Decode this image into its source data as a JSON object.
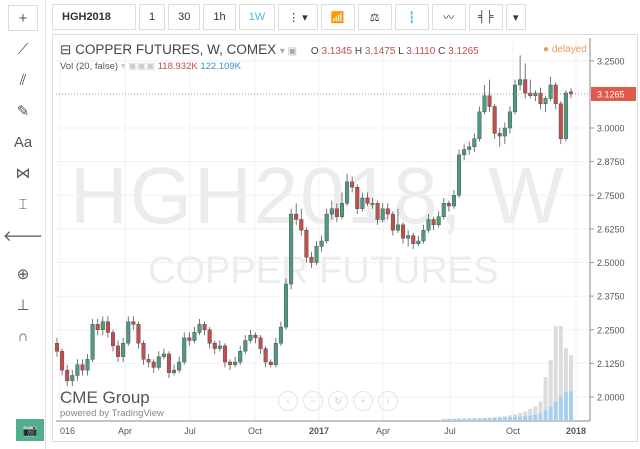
{
  "toolbar": {
    "symbol": "HGH2018",
    "intervals": [
      "1",
      "30",
      "1h",
      "1W"
    ],
    "active_interval": "1W"
  },
  "left_tools": [
    {
      "icon": "crosshair-icon",
      "glyph": "+"
    },
    {
      "icon": "trend-line-icon",
      "glyph": "⟋"
    },
    {
      "icon": "fib-icon",
      "glyph": "⫽"
    },
    {
      "icon": "brush-icon",
      "glyph": "✎"
    },
    {
      "icon": "text-icon",
      "glyph": "Aa"
    },
    {
      "icon": "pattern-icon",
      "glyph": "⋈"
    },
    {
      "icon": "measure-icon",
      "glyph": "⌶"
    },
    {
      "icon": "arrow-left-icon",
      "glyph": "🡐"
    },
    {
      "icon": "zoom-icon",
      "glyph": "⊕"
    },
    {
      "icon": "ruler-icon",
      "glyph": "⊥"
    },
    {
      "icon": "magnet-icon",
      "glyph": "∩"
    }
  ],
  "legend": {
    "title": "COPPER FUTURES, W, COMEX",
    "o_label": "O",
    "o": "3.1345",
    "h_label": "H",
    "h": "3.1475",
    "l_label": "L",
    "l": "3.1110",
    "c_label": "C",
    "c": "3.1265",
    "vol_label": "Vol (20, false)",
    "vol1": "118.932K",
    "vol2": "122.109K",
    "status": "● delayed"
  },
  "watermark": {
    "symbol": "HGH2018, W",
    "name": "COPPER FUTURES"
  },
  "branding": {
    "name": "CME Group",
    "powered": "powered by TradingView"
  },
  "colors": {
    "up": "#4e9a7e",
    "down": "#c0504d",
    "volume": "#a9cfee",
    "volume2": "#dcdcdc",
    "last_price": "#e05a4a"
  },
  "chart_data": {
    "type": "candlestick",
    "last_price": "3.1265",
    "y_ticks": [
      "3.2500",
      "3.0000",
      "2.8750",
      "2.7500",
      "2.6250",
      "2.5000",
      "2.3750",
      "2.2500",
      "2.1250",
      "2.0000"
    ],
    "x_ticks": [
      "016",
      "Apr",
      "Jul",
      "Oct",
      "2017",
      "Apr",
      "Jul",
      "Oct",
      "2018"
    ],
    "ylim": [
      1.92,
      3.32
    ],
    "grid": true,
    "ohlc": [
      [
        2.2,
        2.22,
        2.15,
        2.17
      ],
      [
        2.17,
        2.18,
        2.08,
        2.1
      ],
      [
        2.1,
        2.12,
        2.04,
        2.06
      ],
      [
        2.06,
        2.1,
        2.04,
        2.08
      ],
      [
        2.08,
        2.14,
        2.06,
        2.12
      ],
      [
        2.12,
        2.14,
        2.08,
        2.1
      ],
      [
        2.1,
        2.16,
        2.08,
        2.14
      ],
      [
        2.14,
        2.29,
        2.13,
        2.27
      ],
      [
        2.27,
        2.29,
        2.23,
        2.25
      ],
      [
        2.25,
        2.3,
        2.23,
        2.28
      ],
      [
        2.28,
        2.3,
        2.22,
        2.24
      ],
      [
        2.24,
        2.25,
        2.17,
        2.19
      ],
      [
        2.19,
        2.21,
        2.13,
        2.15
      ],
      [
        2.15,
        2.22,
        2.13,
        2.2
      ],
      [
        2.2,
        2.3,
        2.19,
        2.28
      ],
      [
        2.28,
        2.3,
        2.25,
        2.27
      ],
      [
        2.27,
        2.28,
        2.18,
        2.2
      ],
      [
        2.2,
        2.21,
        2.12,
        2.14
      ],
      [
        2.14,
        2.16,
        2.11,
        2.13
      ],
      [
        2.13,
        2.14,
        2.09,
        2.11
      ],
      [
        2.11,
        2.17,
        2.1,
        2.15
      ],
      [
        2.15,
        2.18,
        2.14,
        2.16
      ],
      [
        2.16,
        2.17,
        2.07,
        2.09
      ],
      [
        2.09,
        2.12,
        2.08,
        2.1
      ],
      [
        2.1,
        2.15,
        2.09,
        2.13
      ],
      [
        2.13,
        2.24,
        2.12,
        2.22
      ],
      [
        2.22,
        2.24,
        2.19,
        2.21
      ],
      [
        2.21,
        2.26,
        2.2,
        2.24
      ],
      [
        2.24,
        2.29,
        2.23,
        2.27
      ],
      [
        2.27,
        2.28,
        2.23,
        2.25
      ],
      [
        2.25,
        2.26,
        2.18,
        2.2
      ],
      [
        2.2,
        2.21,
        2.16,
        2.18
      ],
      [
        2.18,
        2.21,
        2.17,
        2.19
      ],
      [
        2.19,
        2.2,
        2.11,
        2.13
      ],
      [
        2.13,
        2.14,
        2.1,
        2.12
      ],
      [
        2.12,
        2.15,
        2.11,
        2.13
      ],
      [
        2.13,
        2.19,
        2.12,
        2.17
      ],
      [
        2.17,
        2.23,
        2.16,
        2.21
      ],
      [
        2.21,
        2.25,
        2.2,
        2.23
      ],
      [
        2.23,
        2.24,
        2.2,
        2.22
      ],
      [
        2.22,
        2.23,
        2.16,
        2.18
      ],
      [
        2.18,
        2.19,
        2.11,
        2.13
      ],
      [
        2.13,
        2.14,
        2.11,
        2.12
      ],
      [
        2.12,
        2.22,
        2.11,
        2.2
      ],
      [
        2.2,
        2.28,
        2.19,
        2.26
      ],
      [
        2.26,
        2.44,
        2.25,
        2.42
      ],
      [
        2.42,
        2.7,
        2.4,
        2.68
      ],
      [
        2.68,
        2.72,
        2.64,
        2.66
      ],
      [
        2.66,
        2.7,
        2.6,
        2.62
      ],
      [
        2.62,
        2.63,
        2.5,
        2.52
      ],
      [
        2.52,
        2.54,
        2.48,
        2.5
      ],
      [
        2.5,
        2.58,
        2.49,
        2.56
      ],
      [
        2.56,
        2.6,
        2.54,
        2.58
      ],
      [
        2.58,
        2.7,
        2.57,
        2.68
      ],
      [
        2.68,
        2.73,
        2.66,
        2.7
      ],
      [
        2.7,
        2.72,
        2.65,
        2.67
      ],
      [
        2.67,
        2.76,
        2.66,
        2.72
      ],
      [
        2.72,
        2.83,
        2.71,
        2.8
      ],
      [
        2.8,
        2.82,
        2.76,
        2.78
      ],
      [
        2.78,
        2.79,
        2.68,
        2.7
      ],
      [
        2.7,
        2.76,
        2.69,
        2.74
      ],
      [
        2.74,
        2.76,
        2.71,
        2.72
      ],
      [
        2.72,
        2.74,
        2.7,
        2.72
      ],
      [
        2.72,
        2.73,
        2.64,
        2.66
      ],
      [
        2.66,
        2.72,
        2.65,
        2.7
      ],
      [
        2.7,
        2.72,
        2.66,
        2.68
      ],
      [
        2.68,
        2.69,
        2.6,
        2.62
      ],
      [
        2.62,
        2.7,
        2.61,
        2.64
      ],
      [
        2.64,
        2.65,
        2.57,
        2.59
      ],
      [
        2.59,
        2.62,
        2.56,
        2.6
      ],
      [
        2.6,
        2.61,
        2.55,
        2.57
      ],
      [
        2.57,
        2.6,
        2.56,
        2.58
      ],
      [
        2.58,
        2.64,
        2.57,
        2.62
      ],
      [
        2.62,
        2.68,
        2.61,
        2.66
      ],
      [
        2.66,
        2.67,
        2.62,
        2.64
      ],
      [
        2.64,
        2.69,
        2.63,
        2.67
      ],
      [
        2.67,
        2.74,
        2.66,
        2.72
      ],
      [
        2.72,
        2.73,
        2.69,
        2.71
      ],
      [
        2.71,
        2.77,
        2.7,
        2.75
      ],
      [
        2.75,
        2.92,
        2.74,
        2.9
      ],
      [
        2.9,
        2.94,
        2.88,
        2.92
      ],
      [
        2.92,
        2.95,
        2.9,
        2.93
      ],
      [
        2.93,
        2.98,
        2.91,
        2.96
      ],
      [
        2.96,
        3.08,
        2.95,
        3.06
      ],
      [
        3.06,
        3.16,
        3.05,
        3.12
      ],
      [
        3.12,
        3.18,
        3.06,
        3.08
      ],
      [
        3.08,
        3.09,
        2.96,
        2.98
      ],
      [
        2.98,
        3.0,
        2.93,
        2.97
      ],
      [
        2.97,
        3.02,
        2.94,
        3.0
      ],
      [
        3.0,
        3.08,
        2.98,
        3.06
      ],
      [
        3.06,
        3.18,
        3.05,
        3.16
      ],
      [
        3.16,
        3.27,
        3.14,
        3.18
      ],
      [
        3.18,
        3.24,
        3.11,
        3.13
      ],
      [
        3.13,
        3.18,
        3.11,
        3.12
      ],
      [
        3.12,
        3.14,
        3.1,
        3.13
      ],
      [
        3.13,
        3.15,
        3.07,
        3.09
      ],
      [
        3.09,
        3.12,
        3.06,
        3.11
      ],
      [
        3.11,
        3.19,
        3.1,
        3.16
      ],
      [
        3.16,
        3.17,
        3.07,
        3.09
      ],
      [
        3.09,
        3.1,
        2.94,
        2.96
      ],
      [
        2.96,
        3.14,
        2.95,
        3.13
      ],
      [
        3.1345,
        3.1475,
        3.111,
        3.1265
      ]
    ],
    "volume_k": [
      0,
      0,
      0,
      0,
      0,
      0,
      0,
      0,
      0,
      0,
      0,
      0,
      0,
      0,
      0,
      0,
      0,
      0,
      0,
      0,
      0,
      0,
      0,
      0,
      0,
      0,
      0,
      0,
      0,
      0,
      0,
      0,
      0,
      0,
      0,
      0,
      0,
      0,
      0,
      0,
      0,
      0,
      0,
      0,
      0,
      0,
      0,
      0,
      0,
      0,
      0,
      0,
      0,
      0,
      0,
      0,
      0,
      0,
      0,
      0,
      0,
      0,
      0,
      0,
      0,
      0,
      0,
      0,
      0,
      0,
      0,
      0,
      0,
      0,
      0,
      0,
      8,
      9,
      9,
      10,
      10,
      11,
      11,
      12,
      12,
      13,
      13,
      14,
      14,
      15,
      16,
      18,
      20,
      22,
      26,
      32,
      45,
      60,
      80,
      100,
      118.932,
      122.109
    ],
    "volume2_k": [
      0,
      0,
      0,
      0,
      0,
      0,
      0,
      0,
      0,
      0,
      0,
      0,
      0,
      0,
      0,
      0,
      0,
      0,
      0,
      0,
      0,
      0,
      0,
      0,
      0,
      0,
      0,
      0,
      0,
      0,
      0,
      0,
      0,
      0,
      0,
      0,
      0,
      0,
      0,
      0,
      0,
      0,
      0,
      0,
      0,
      0,
      0,
      0,
      0,
      0,
      0,
      0,
      0,
      0,
      0,
      0,
      0,
      0,
      0,
      0,
      0,
      0,
      0,
      0,
      0,
      0,
      0,
      0,
      0,
      0,
      0,
      0,
      0,
      0,
      0,
      0,
      0,
      0,
      0,
      0,
      0,
      0,
      0,
      0,
      0,
      0,
      16,
      18,
      20,
      24,
      28,
      34,
      40,
      50,
      60,
      80,
      180,
      250,
      390,
      390,
      300,
      270
    ]
  }
}
